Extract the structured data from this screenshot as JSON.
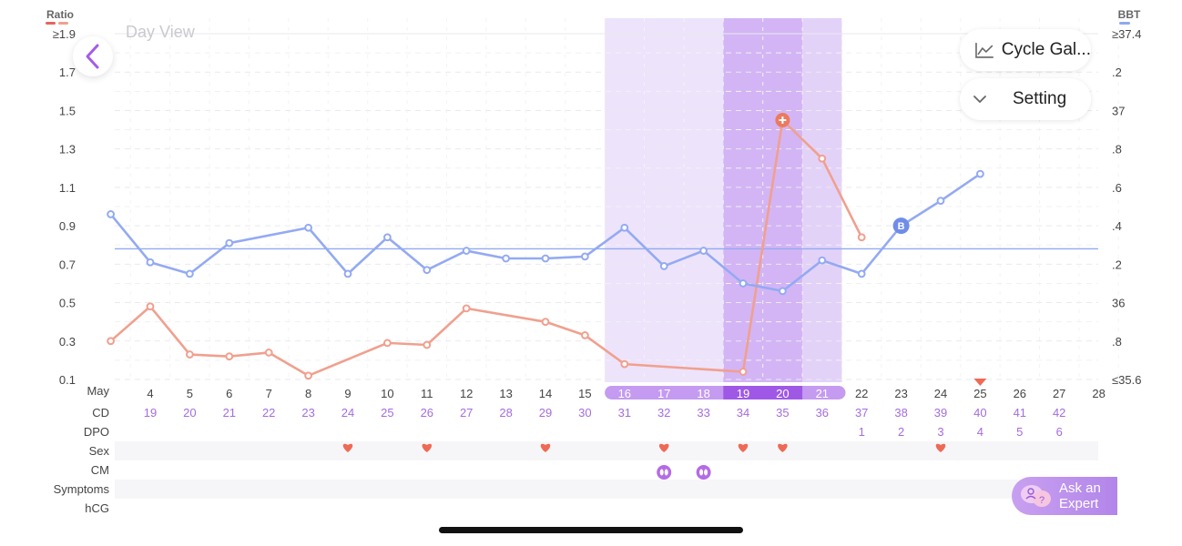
{
  "header": {
    "view_title": "Day View",
    "left_axis_title": "Ratio",
    "right_axis_title": "BBT",
    "left_axis_marker_color": "#e8645a",
    "right_axis_marker_color": "#8fa8f0"
  },
  "buttons": {
    "back_icon": "chevron-left-icon",
    "cycle_label": "Cycle Gal...",
    "cycle_icon": "line-chart-icon",
    "setting_label": "Setting",
    "setting_icon": "chevron-down-icon",
    "ask_line1": "Ask an",
    "ask_line2": "Expert",
    "ask_icon": "chat-expert-icon"
  },
  "colors": {
    "bbt_line": "#93aaf2",
    "ratio_line": "#f0a08e",
    "fertile_light": "#ede3fb",
    "fertile_mid": "#e3d2f8",
    "ovulation": "#d3b5f5",
    "purple_text": "#a46ce0",
    "heart": "#ef6a55",
    "cm_icon": "#b46be8",
    "ref_line": "#93aaf2"
  },
  "chart_data": {
    "type": "line",
    "left_axis": {
      "ticks": [
        "≥1.9",
        "1.7",
        "1.5",
        "1.3",
        "1.1",
        "0.9",
        "0.7",
        "0.5",
        "0.3",
        "0.1"
      ],
      "ylim": [
        0.1,
        1.9
      ]
    },
    "right_axis": {
      "ticks": [
        "≥37.4",
        ".2",
        "37",
        ".8",
        ".6",
        ".4",
        ".2",
        "36",
        ".8",
        "≤35.6"
      ],
      "ylim": [
        35.6,
        37.4
      ]
    },
    "month_label": "May",
    "x": [
      3,
      4,
      5,
      6,
      7,
      8,
      9,
      10,
      11,
      12,
      13,
      14,
      15,
      16,
      17,
      18,
      19,
      20,
      21,
      22,
      23,
      24,
      25,
      26,
      27,
      28
    ],
    "day_labels": [
      "4",
      "5",
      "6",
      "7",
      "8",
      "9",
      "10",
      "11",
      "12",
      "13",
      "14",
      "15",
      "16",
      "17",
      "18",
      "19",
      "20",
      "21",
      "22",
      "23",
      "24",
      "25",
      "26",
      "27",
      "28"
    ],
    "rows": {
      "cd_label": "CD",
      "cd": [
        "19",
        "20",
        "21",
        "22",
        "23",
        "24",
        "25",
        "26",
        "27",
        "28",
        "29",
        "30",
        "31",
        "32",
        "33",
        "34",
        "35",
        "36",
        "37",
        "38",
        "39",
        "40",
        "41",
        "42"
      ],
      "dpo_label": "DPO",
      "dpo": [
        {
          "day": 22,
          "v": "1"
        },
        {
          "day": 23,
          "v": "2"
        },
        {
          "day": 24,
          "v": "3"
        },
        {
          "day": 25,
          "v": "4"
        },
        {
          "day": 26,
          "v": "5"
        },
        {
          "day": 27,
          "v": "6"
        }
      ],
      "sex_label": "Sex",
      "sex_days": [
        9,
        11,
        14,
        17,
        19,
        20,
        24
      ],
      "cm_label": "CM",
      "cm_days": [
        17,
        18
      ],
      "symptoms_label": "Symptoms",
      "hcg_label": "hCG"
    },
    "series": [
      {
        "name": "BBT",
        "axis": "right",
        "points": [
          [
            3,
            36.46
          ],
          [
            4,
            36.21
          ],
          [
            5,
            36.15
          ],
          [
            6,
            36.31
          ],
          [
            8,
            36.39
          ],
          [
            9,
            36.15
          ],
          [
            10,
            36.34
          ],
          [
            11,
            36.17
          ],
          [
            12,
            36.27
          ],
          [
            13,
            36.23
          ],
          [
            14,
            36.23
          ],
          [
            15,
            36.24
          ],
          [
            16,
            36.39
          ],
          [
            17,
            36.19
          ],
          [
            18,
            36.27
          ],
          [
            19,
            36.1
          ],
          [
            20,
            36.06
          ],
          [
            21,
            36.22
          ],
          [
            22,
            36.15
          ],
          [
            23,
            36.4
          ],
          [
            24,
            36.53
          ],
          [
            25,
            36.67
          ]
        ],
        "marker_day": 23,
        "marker_label": "B"
      },
      {
        "name": "Ratio",
        "axis": "left",
        "points": [
          [
            3,
            0.3
          ],
          [
            4,
            0.48
          ],
          [
            5,
            0.23
          ],
          [
            6,
            0.22
          ],
          [
            7,
            0.24
          ],
          [
            8,
            0.12
          ],
          [
            10,
            0.29
          ],
          [
            11,
            0.28
          ],
          [
            12,
            0.47
          ],
          [
            14,
            0.4
          ],
          [
            15,
            0.33
          ],
          [
            16,
            0.18
          ],
          [
            19,
            0.14
          ],
          [
            20,
            1.45
          ],
          [
            21,
            1.25
          ],
          [
            22,
            0.84
          ]
        ],
        "peak_day": 20
      }
    ],
    "reference_line": {
      "axis": "right",
      "value": 36.28
    },
    "fertile_window": {
      "start_day": 16,
      "end_day": 21
    },
    "ovulation_window": {
      "start_day": 19,
      "end_day": 20
    },
    "today_marker_day": 25
  }
}
